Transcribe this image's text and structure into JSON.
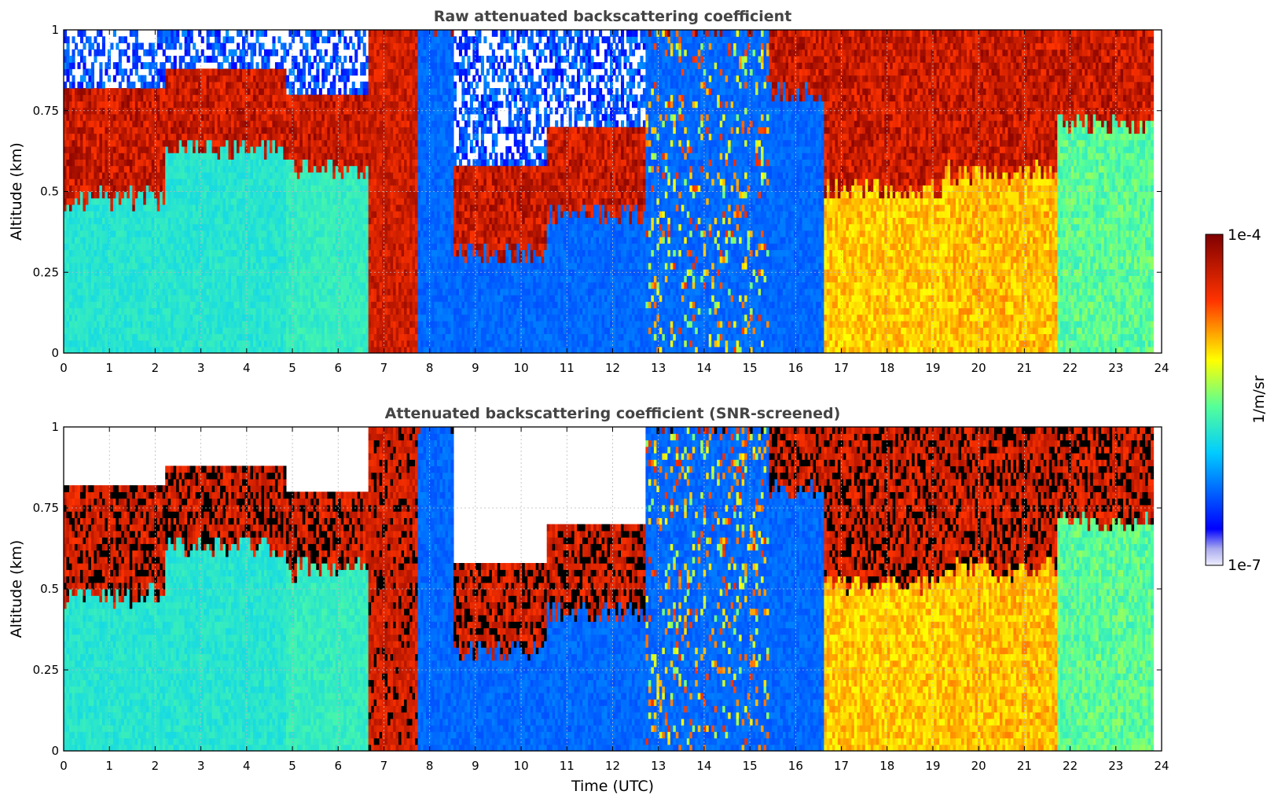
{
  "chart_data": [
    {
      "type": "heatmap",
      "title": "Raw attenuated backscattering coefficient",
      "xlabel": "",
      "ylabel": "Altitude (km)",
      "xlim": [
        0,
        24
      ],
      "ylim": [
        0,
        1
      ],
      "xticks": [
        "0",
        "1",
        "2",
        "3",
        "4",
        "5",
        "6",
        "7",
        "8",
        "9",
        "10",
        "11",
        "12",
        "13",
        "14",
        "15",
        "16",
        "17",
        "18",
        "19",
        "20",
        "21",
        "22",
        "23",
        "24"
      ],
      "yticks": [
        "0",
        "0.25",
        "0.5",
        "0.75",
        "1"
      ],
      "grid": "dotted",
      "scale": "log",
      "colormap": "jet",
      "cbar_range": [
        1e-07,
        0.0001
      ],
      "columns": [
        {
          "x": [
            0,
            2.2
          ],
          "surface": 3.4,
          "cloud_base": 0.47,
          "cloud_top": 0.82,
          "above": "noise"
        },
        {
          "x": [
            2.2,
            4.8
          ],
          "surface": 3.4,
          "cloud_base": 0.62,
          "cloud_top": 0.88,
          "above": "noise"
        },
        {
          "x": [
            4.8,
            6.6
          ],
          "surface": 3.6,
          "cloud_base": 0.55,
          "cloud_top": 0.8,
          "above": "noise"
        },
        {
          "x": [
            6.6,
            7.7
          ],
          "surface": 8.0,
          "cloud_base": 0.0,
          "cloud_top": 1.0,
          "above": "cloud"
        },
        {
          "x": [
            7.7,
            8.5
          ],
          "surface": 1.8,
          "cloud_base": 1.0,
          "cloud_top": 1.0,
          "above": "noise"
        },
        {
          "x": [
            8.5,
            10.5
          ],
          "surface": 1.8,
          "cloud_base": 0.3,
          "cloud_top": 0.58,
          "above": "noise"
        },
        {
          "x": [
            10.5,
            12.7
          ],
          "surface": 1.8,
          "cloud_base": 0.42,
          "cloud_top": 0.7,
          "above": "noise"
        },
        {
          "x": [
            12.7,
            15.4
          ],
          "surface": 1.8,
          "cloud_base": 1.0,
          "cloud_top": 1.0,
          "above": "streaks"
        },
        {
          "x": [
            15.4,
            16.6
          ],
          "surface": 1.8,
          "cloud_base": 0.8,
          "cloud_top": 1.0,
          "above": "noise"
        },
        {
          "x": [
            16.6,
            19.2
          ],
          "surface": 5.5,
          "cloud_base": 0.5,
          "cloud_top": 1.0,
          "above": "cloud"
        },
        {
          "x": [
            19.2,
            21.7
          ],
          "surface": 5.6,
          "cloud_base": 0.55,
          "cloud_top": 1.0,
          "above": "cloud"
        },
        {
          "x": [
            21.7,
            23.8
          ],
          "surface": 3.8,
          "cloud_base": 0.7,
          "cloud_top": 1.0,
          "above": "cloud"
        }
      ]
    },
    {
      "type": "heatmap",
      "title": "Attenuated backscattering coefficient (SNR-screened)",
      "xlabel": "Time (UTC)",
      "ylabel": "Altitude (km)",
      "xlim": [
        0,
        24
      ],
      "ylim": [
        0,
        1
      ],
      "xticks": [
        "0",
        "1",
        "2",
        "3",
        "4",
        "5",
        "6",
        "7",
        "8",
        "9",
        "10",
        "11",
        "12",
        "13",
        "14",
        "15",
        "16",
        "17",
        "18",
        "19",
        "20",
        "21",
        "22",
        "23",
        "24"
      ],
      "yticks": [
        "0",
        "0.25",
        "0.5",
        "0.75",
        "1"
      ],
      "grid": "dotted",
      "scale": "log",
      "colormap": "jet",
      "cbar_range": [
        1e-07,
        0.0001
      ],
      "columns": [
        {
          "x": [
            0,
            2.2
          ],
          "surface": 3.4,
          "cloud_base": 0.47,
          "cloud_top": 0.82,
          "above": "clear"
        },
        {
          "x": [
            2.2,
            4.8
          ],
          "surface": 3.4,
          "cloud_base": 0.62,
          "cloud_top": 0.88,
          "above": "clear"
        },
        {
          "x": [
            4.8,
            6.6
          ],
          "surface": 3.6,
          "cloud_base": 0.55,
          "cloud_top": 0.8,
          "above": "clear"
        },
        {
          "x": [
            6.6,
            7.7
          ],
          "surface": 8.0,
          "cloud_base": 0.0,
          "cloud_top": 1.0,
          "above": "cloud"
        },
        {
          "x": [
            7.7,
            8.5
          ],
          "surface": 1.8,
          "cloud_base": 1.0,
          "cloud_top": 1.0,
          "above": "clear"
        },
        {
          "x": [
            8.5,
            10.5
          ],
          "surface": 1.8,
          "cloud_base": 0.3,
          "cloud_top": 0.58,
          "above": "clear"
        },
        {
          "x": [
            10.5,
            12.7
          ],
          "surface": 1.8,
          "cloud_base": 0.42,
          "cloud_top": 0.7,
          "above": "clear"
        },
        {
          "x": [
            12.7,
            15.4
          ],
          "surface": 1.8,
          "cloud_base": 1.0,
          "cloud_top": 1.0,
          "above": "streaks"
        },
        {
          "x": [
            15.4,
            16.6
          ],
          "surface": 1.8,
          "cloud_base": 0.8,
          "cloud_top": 1.0,
          "above": "clear"
        },
        {
          "x": [
            16.6,
            19.2
          ],
          "surface": 5.5,
          "cloud_base": 0.5,
          "cloud_top": 1.0,
          "above": "cloud"
        },
        {
          "x": [
            19.2,
            21.7
          ],
          "surface": 5.6,
          "cloud_base": 0.55,
          "cloud_top": 1.0,
          "above": "cloud"
        },
        {
          "x": [
            21.7,
            23.8
          ],
          "surface": 3.8,
          "cloud_base": 0.7,
          "cloud_top": 1.0,
          "above": "cloud"
        }
      ]
    }
  ],
  "colorbar": {
    "label": "1/m/sr",
    "max_label": "1e-4",
    "min_label": "1e-7"
  }
}
